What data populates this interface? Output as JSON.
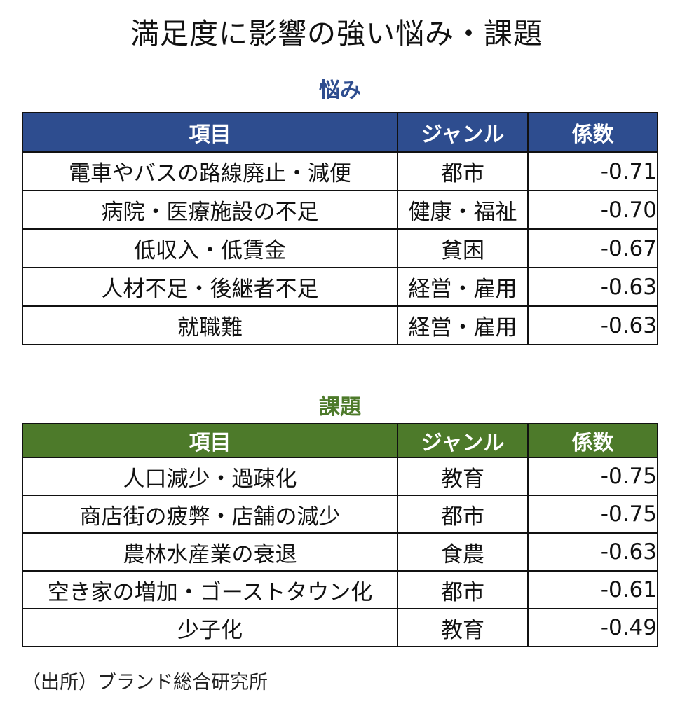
{
  "title": "満足度に影響の強い悩み・課題",
  "worries": {
    "heading": "悩み",
    "color": "#2e4d8f",
    "columns": [
      "項目",
      "ジャンル",
      "係数"
    ],
    "rows": [
      {
        "item": "電車やバスの路線廃止・減便",
        "genre": "都市",
        "coef": "-0.71"
      },
      {
        "item": "病院・医療施設の不足",
        "genre": "健康・福祉",
        "coef": "-0.70"
      },
      {
        "item": "低収入・低賃金",
        "genre": "貧困",
        "coef": "-0.67"
      },
      {
        "item": "人材不足・後継者不足",
        "genre": "経営・雇用",
        "coef": "-0.63"
      },
      {
        "item": "就職難",
        "genre": "経営・雇用",
        "coef": "-0.63"
      }
    ]
  },
  "issues": {
    "heading": "課題",
    "color": "#4d7a2a",
    "columns": [
      "項目",
      "ジャンル",
      "係数"
    ],
    "rows": [
      {
        "item": "人口減少・過疎化",
        "genre": "教育",
        "coef": "-0.75"
      },
      {
        "item": "商店街の疲弊・店舗の減少",
        "genre": "都市",
        "coef": "-0.75"
      },
      {
        "item": "農林水産業の衰退",
        "genre": "食農",
        "coef": "-0.63"
      },
      {
        "item": "空き家の増加・ゴーストタウン化",
        "genre": "都市",
        "coef": "-0.61"
      },
      {
        "item": "少子化",
        "genre": "教育",
        "coef": "-0.49"
      }
    ]
  },
  "source": "（出所）ブランド総合研究所"
}
